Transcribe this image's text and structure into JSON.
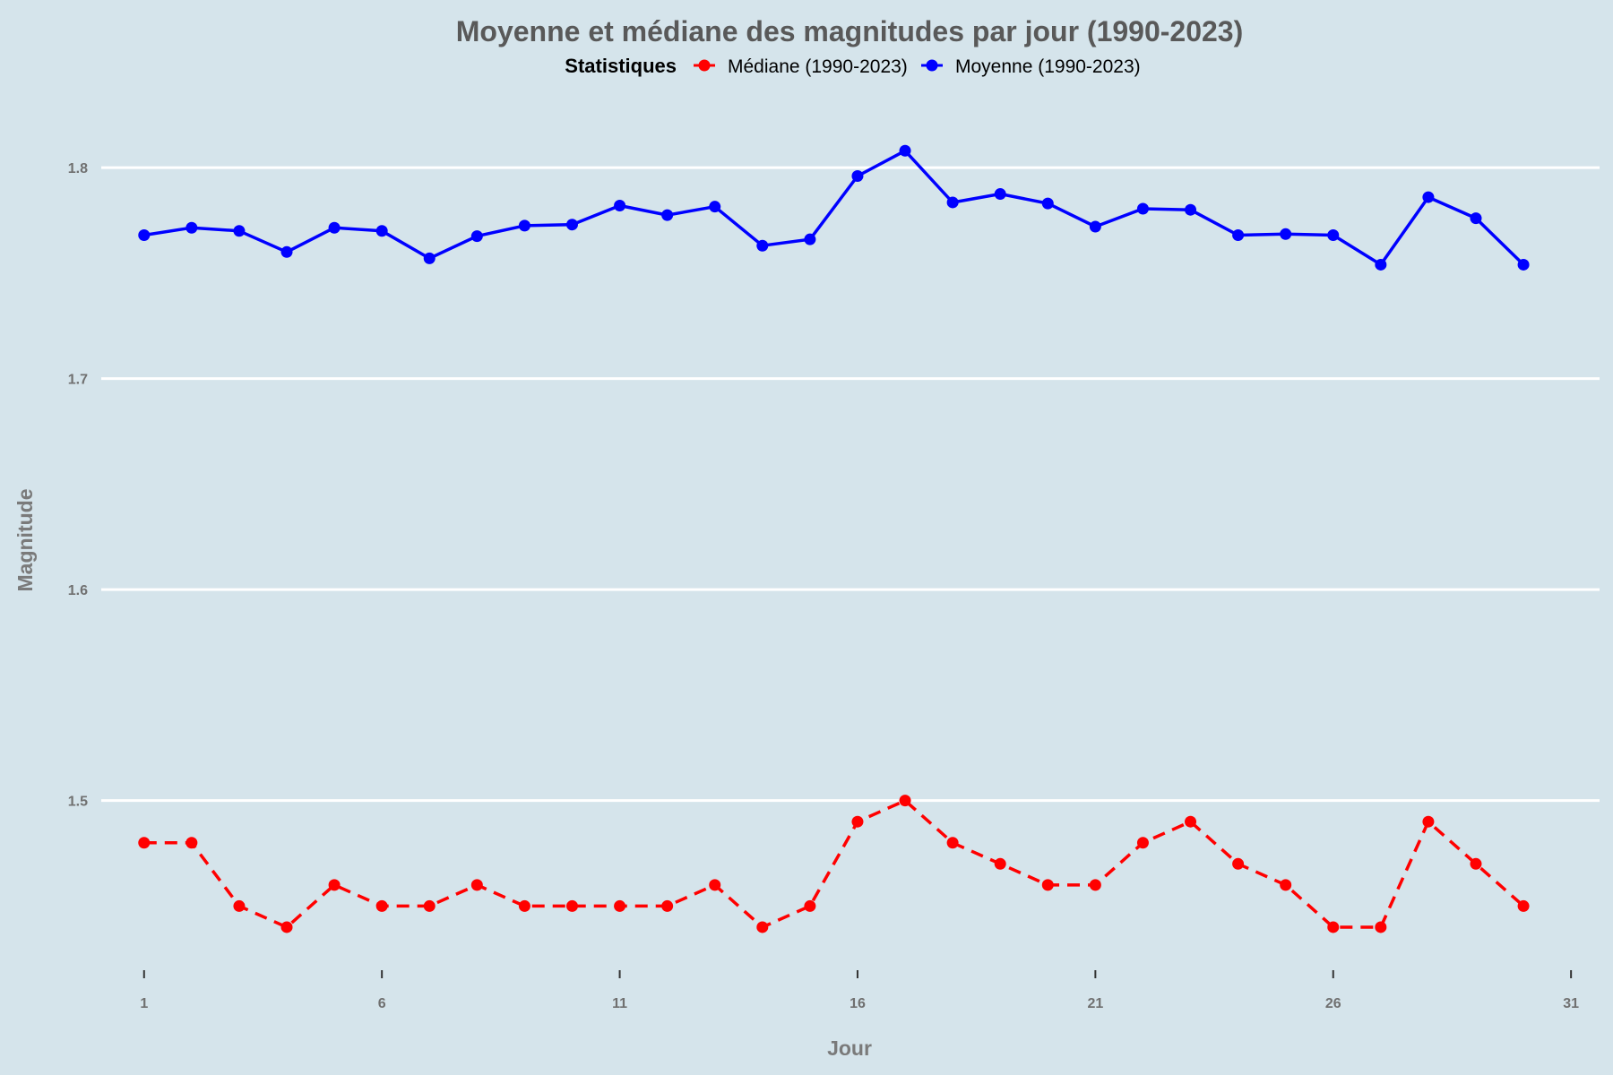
{
  "chart_data": {
    "type": "line",
    "title": "Moyenne et médiane des magnitudes par jour (1990-2023)",
    "xlabel": "Jour",
    "ylabel": "Magnitude",
    "xlim": [
      0.1,
      31.6
    ],
    "ylim": [
      1.423,
      1.82
    ],
    "x_ticks": [
      1,
      6,
      11,
      16,
      21,
      26,
      31
    ],
    "x_tick_labels": [
      "1",
      "6",
      "11",
      "16",
      "21",
      "26",
      "31"
    ],
    "y_ticks": [
      1.5,
      1.6,
      1.7,
      1.8
    ],
    "y_tick_labels": [
      "1.5",
      "1.6",
      "1.7",
      "1.8"
    ],
    "grid": "horizontal",
    "legend": {
      "title": "Statistiques",
      "placement": "top"
    },
    "x": [
      1,
      2,
      3,
      4,
      5,
      6,
      7,
      8,
      9,
      10,
      11,
      12,
      13,
      14,
      15,
      16,
      17,
      18,
      19,
      20,
      21,
      22,
      23,
      24,
      25,
      26,
      27,
      28,
      29,
      30
    ],
    "series": [
      {
        "name": "Médiane (1990-2023)",
        "color": "#ff0000",
        "line_style": "dashed",
        "values": [
          1.48,
          1.48,
          1.45,
          1.44,
          1.46,
          1.45,
          1.45,
          1.46,
          1.45,
          1.45,
          1.45,
          1.45,
          1.46,
          1.44,
          1.45,
          1.49,
          1.5,
          1.48,
          1.47,
          1.46,
          1.46,
          1.48,
          1.49,
          1.47,
          1.46,
          1.44,
          1.44,
          1.49,
          1.47,
          1.45
        ]
      },
      {
        "name": "Moyenne (1990-2023)",
        "color": "#0000ff",
        "line_style": "solid",
        "values": [
          1.768,
          1.7715,
          1.77,
          1.76,
          1.7715,
          1.77,
          1.757,
          1.7675,
          1.7725,
          1.773,
          1.782,
          1.7775,
          1.7815,
          1.763,
          1.766,
          1.796,
          1.808,
          1.7835,
          1.7875,
          1.783,
          1.772,
          1.7805,
          1.78,
          1.768,
          1.7685,
          1.768,
          1.754,
          1.786,
          1.776,
          1.754
        ]
      }
    ]
  }
}
